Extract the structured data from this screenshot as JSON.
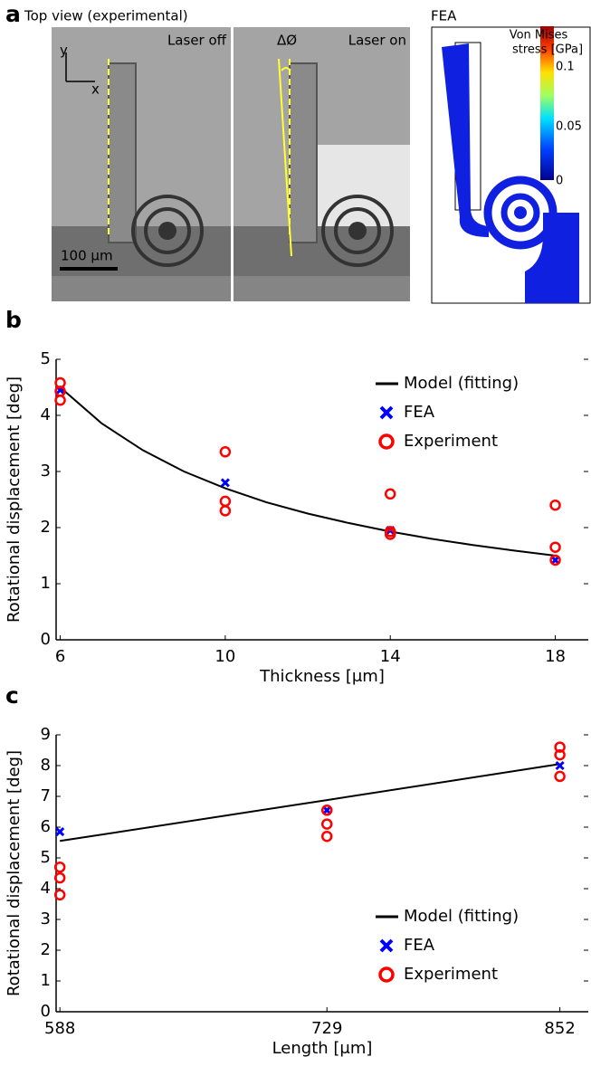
{
  "panel_a": {
    "label": "a",
    "title": "Top view (experimental)",
    "left_image_label": "Laser off",
    "right_image_label": "Laser on",
    "axis_y": "y",
    "axis_x": "x",
    "scale_bar": "100 μm",
    "angle_label": "ΔØ",
    "fea_title": "FEA",
    "colorbar_title_1": "Von Mises",
    "colorbar_title_2": "stress [GPa]",
    "colorbar_ticks": [
      "0.1",
      "0.05",
      "0"
    ]
  },
  "chart_data": [
    {
      "type": "scatter",
      "label": "b",
      "xlabel": "Thickness [μm]",
      "ylabel": "Rotational displacement [deg]",
      "xlim": [
        5.9,
        18.8
      ],
      "ylim": [
        0,
        5
      ],
      "xticks": [
        6,
        10,
        14,
        18
      ],
      "yticks": [
        0,
        1,
        2,
        3,
        4,
        5
      ],
      "legend": "upper right",
      "series": [
        {
          "name": "Model (fitting)",
          "marker": "line",
          "color": "#000000",
          "x": [
            6,
            7,
            8,
            9,
            10,
            11,
            12,
            13,
            14,
            15,
            16,
            17,
            18
          ],
          "values": [
            4.5,
            3.86,
            3.38,
            3.0,
            2.7,
            2.45,
            2.25,
            2.08,
            1.93,
            1.8,
            1.69,
            1.59,
            1.5
          ]
        },
        {
          "name": "FEA",
          "marker": "x",
          "color": "#0000ff",
          "x": [
            6,
            10,
            14,
            18
          ],
          "values": [
            4.45,
            2.8,
            1.95,
            1.42
          ]
        },
        {
          "name": "Experiment",
          "marker": "o",
          "color": "#ff0000",
          "x": [
            6,
            6,
            6,
            10,
            10,
            10,
            14,
            14,
            14,
            18,
            18,
            18
          ],
          "values": [
            4.58,
            4.43,
            4.27,
            3.35,
            2.47,
            2.3,
            2.6,
            1.93,
            1.88,
            2.4,
            1.65,
            1.42
          ]
        }
      ]
    },
    {
      "type": "scatter",
      "label": "c",
      "xlabel": "Length [μm]",
      "ylabel": "Rotational displacement [deg]",
      "xlim": [
        586,
        867
      ],
      "ylim": [
        0,
        9
      ],
      "xticks": [
        588,
        729,
        852
      ],
      "yticks": [
        0,
        1,
        2,
        3,
        4,
        5,
        6,
        7,
        8,
        9
      ],
      "legend": "lower right",
      "series": [
        {
          "name": "Model (fitting)",
          "marker": "line",
          "color": "#000000",
          "x": [
            588,
            729,
            852
          ],
          "values": [
            5.55,
            6.88,
            8.05
          ]
        },
        {
          "name": "FEA",
          "marker": "x",
          "color": "#0000ff",
          "x": [
            588,
            729,
            852
          ],
          "values": [
            5.85,
            6.55,
            8.0
          ]
        },
        {
          "name": "Experiment",
          "marker": "o",
          "color": "#ff0000",
          "x": [
            588,
            588,
            588,
            729,
            729,
            729,
            852,
            852,
            852
          ],
          "values": [
            4.7,
            4.35,
            3.8,
            6.55,
            6.1,
            5.7,
            8.6,
            8.35,
            7.65
          ]
        }
      ]
    }
  ]
}
